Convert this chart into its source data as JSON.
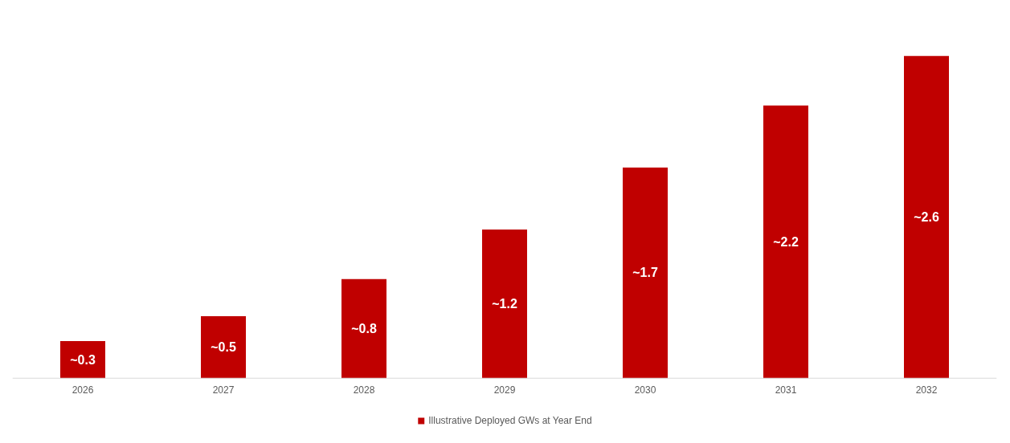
{
  "chart_data": {
    "type": "bar",
    "categories": [
      "2026",
      "2027",
      "2028",
      "2029",
      "2030",
      "2031",
      "2032"
    ],
    "series": [
      {
        "name": "Illustrative Deployed GWs at Year End",
        "color": "#c00000",
        "values": [
          0.3,
          0.5,
          0.8,
          1.2,
          1.7,
          2.2,
          2.6
        ],
        "value_labels": [
          "~0.3",
          "~0.5",
          "~0.8",
          "~1.2",
          "~1.7",
          "~2.2",
          "~2.6"
        ]
      }
    ],
    "legend": "bottom",
    "grid": false
  }
}
